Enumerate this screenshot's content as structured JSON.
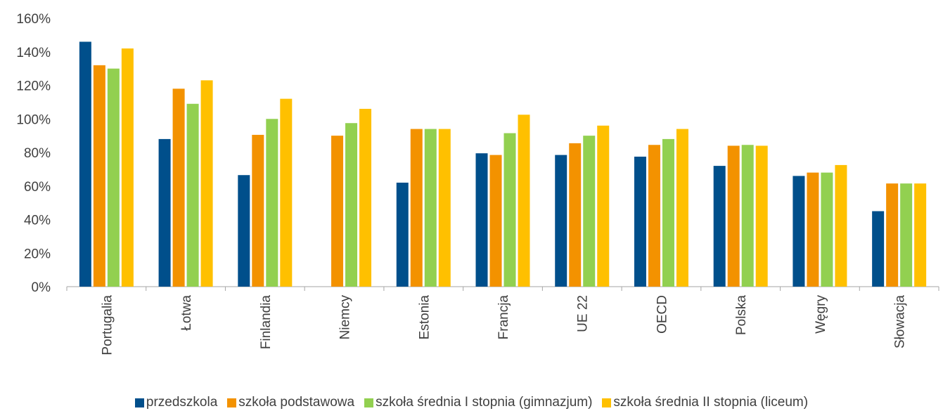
{
  "chart_data": {
    "type": "bar",
    "categories": [
      "Portugalia",
      "Łotwa",
      "Finlandia",
      "Niemcy",
      "Estonia",
      "Francja",
      "UE 22",
      "OECD",
      "Polska",
      "Węgry",
      "Słowacja"
    ],
    "series": [
      {
        "name": "przedszkola",
        "color": "#004f8b",
        "values": [
          146,
          88,
          66.5,
          null,
          62,
          79.5,
          78.5,
          77.5,
          72,
          66,
          45
        ]
      },
      {
        "name": "szkoła podstawowa",
        "color": "#f39200",
        "values": [
          132,
          118,
          90.5,
          90,
          94,
          78.5,
          85.5,
          84.5,
          84,
          68,
          61.5
        ]
      },
      {
        "name": "szkoła średnia I stopnia (gimnazjum)",
        "color": "#92d050",
        "values": [
          130,
          109,
          100,
          97.5,
          94,
          91.5,
          90,
          88,
          84.5,
          68,
          61.5
        ]
      },
      {
        "name": "szkoła średnia II stopnia (liceum)",
        "color": "#ffc000",
        "values": [
          142,
          123,
          112,
          106,
          94,
          102.5,
          96,
          94,
          84,
          72.5,
          61.5
        ]
      }
    ],
    "ylim": [
      0,
      160
    ],
    "yticks": [
      {
        "value": 0,
        "label": "0%"
      },
      {
        "value": 20,
        "label": "20%"
      },
      {
        "value": 40,
        "label": "40%"
      },
      {
        "value": 60,
        "label": "60%"
      },
      {
        "value": 80,
        "label": "80%"
      },
      {
        "value": 100,
        "label": "100%"
      },
      {
        "value": 120,
        "label": "120%"
      },
      {
        "value": 140,
        "label": "140%"
      },
      {
        "value": 160,
        "label": "160%"
      }
    ],
    "grid": false,
    "legend": "bottom"
  }
}
